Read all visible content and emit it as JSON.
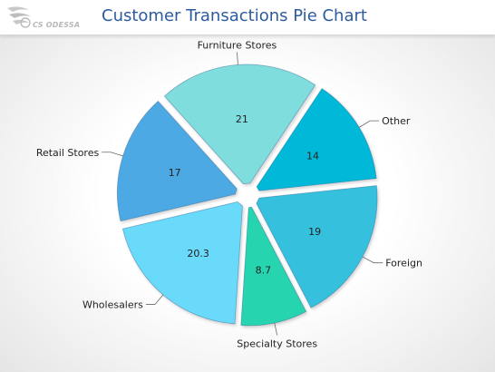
{
  "logo": {
    "text": "CS ODESSA",
    "color": "#b8b8b8"
  },
  "chart_data": {
    "type": "pie",
    "title": "Customer Transactions Pie Chart",
    "exploded": true,
    "legend": "none",
    "slices": [
      {
        "label": "Furniture Stores",
        "value": 21,
        "value_text": "21",
        "color": "#7fdedd"
      },
      {
        "label": "Other",
        "value": 14,
        "value_text": "14",
        "color": "#00b9d9"
      },
      {
        "label": "Foreign",
        "value": 19,
        "value_text": "19",
        "color": "#35c1de"
      },
      {
        "label": "Specialty Stores",
        "value": 8.7,
        "value_text": "8.7",
        "color": "#25d5b0"
      },
      {
        "label": "Wholesalers",
        "value": 20.3,
        "value_text": "20.3",
        "color": "#69daf9"
      },
      {
        "label": "Retail Stores",
        "value": 17,
        "value_text": "17",
        "color": "#4ea9e4"
      }
    ]
  }
}
